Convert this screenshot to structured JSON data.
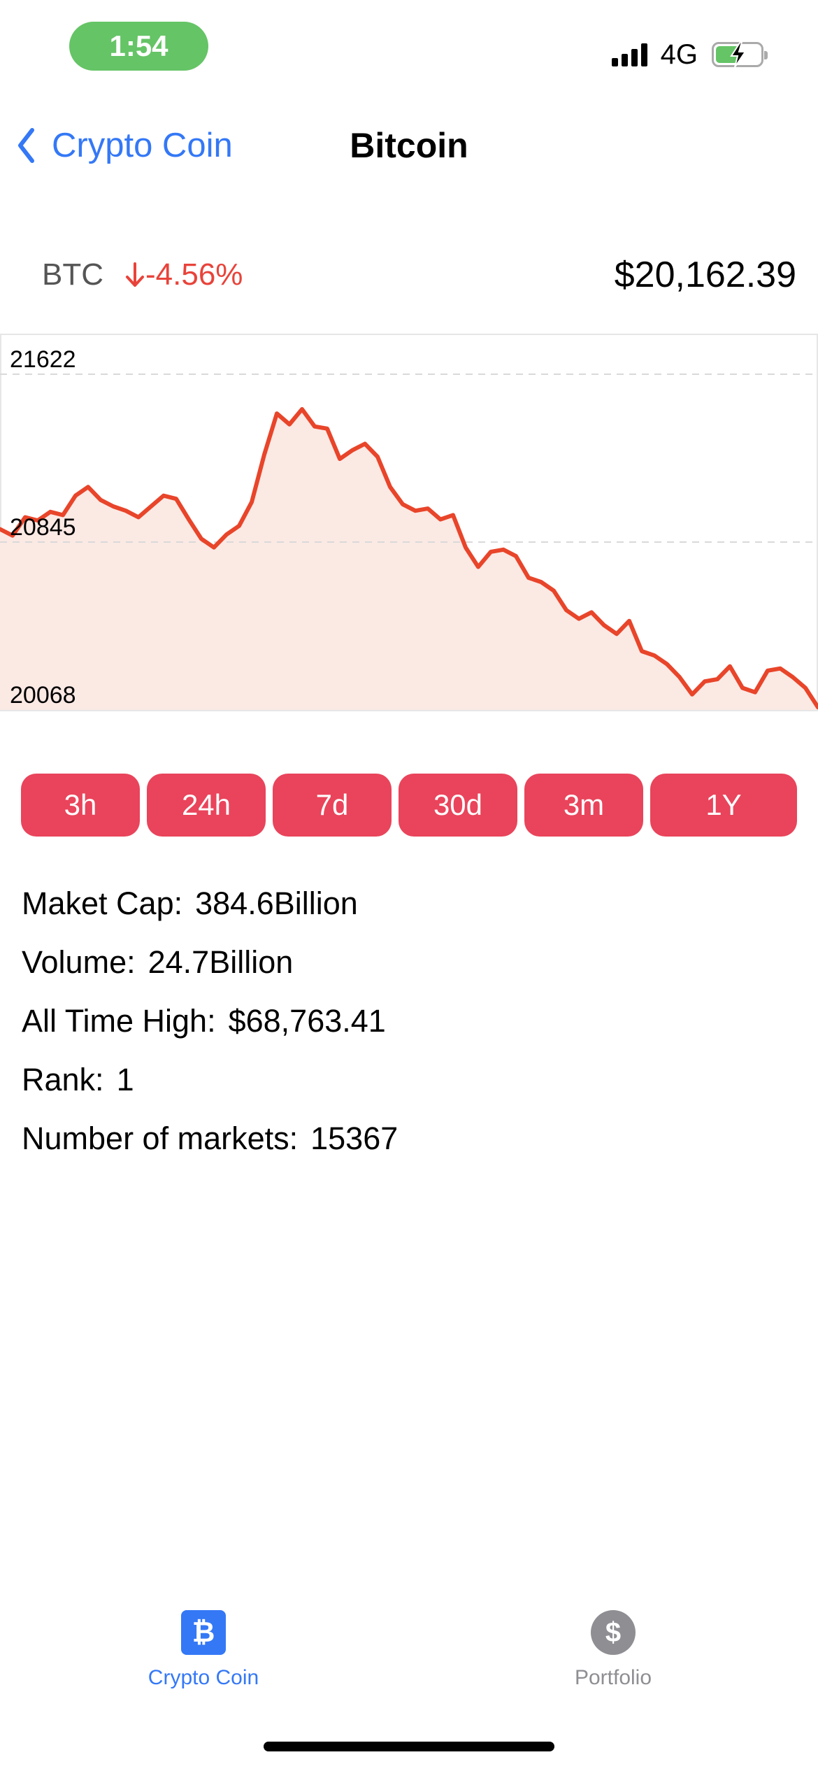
{
  "status_bar": {
    "time": "1:54",
    "network": "4G",
    "battery_level": 0.55,
    "colors": {
      "time_pill": "#65c466",
      "battery": "#65c466"
    }
  },
  "nav": {
    "back_label": "Crypto Coin",
    "title": "Bitcoin",
    "back_icon": "chevron-left-icon",
    "accent": "#3478f6"
  },
  "coin": {
    "symbol": "BTC",
    "change": "-4.56%",
    "change_icon": "arrow-down-icon",
    "price": "$20,162.39",
    "down_color": "#e8433a"
  },
  "chart_data": {
    "type": "area",
    "y_ticks": [
      "21622",
      "20845",
      "20068"
    ],
    "ylim": [
      20068,
      21622
    ],
    "grid": "dashed horizontal lines at upper two ticks",
    "line_color": "#e8452a",
    "fill_color": "#fbe9e4",
    "values": [
      20905,
      20875,
      20960,
      20945,
      20985,
      20970,
      21060,
      21100,
      21040,
      21010,
      20990,
      20960,
      21010,
      21060,
      21045,
      20950,
      20860,
      20820,
      20880,
      20920,
      21030,
      21250,
      21440,
      21390,
      21460,
      21380,
      21370,
      21230,
      21270,
      21300,
      21240,
      21100,
      21020,
      20990,
      21000,
      20950,
      20970,
      20820,
      20730,
      20800,
      20810,
      20780,
      20680,
      20660,
      20620,
      20530,
      20490,
      20520,
      20460,
      20420,
      20480,
      20340,
      20320,
      20280,
      20220,
      20140,
      20200,
      20210,
      20270,
      20170,
      20150,
      20250,
      20260,
      20220,
      20170,
      20080
    ]
  },
  "range_buttons": [
    "3h",
    "24h",
    "7d",
    "30d",
    "3m",
    "1Y"
  ],
  "stats": [
    {
      "label": "Maket Cap:",
      "value": "384.6Billion"
    },
    {
      "label": "Volume:",
      "value": "24.7Billion"
    },
    {
      "label": "All Time High:",
      "value": "$68,763.41"
    },
    {
      "label": "Rank:",
      "value": "1"
    },
    {
      "label": "Number of markets:",
      "value": "15367"
    }
  ],
  "tab_bar": {
    "tabs": [
      {
        "label": "Crypto Coin",
        "icon": "bitcoin-icon",
        "glyph": "₿",
        "active": true,
        "color": "#3478f6"
      },
      {
        "label": "Portfolio",
        "icon": "dollar-icon",
        "glyph": "$",
        "active": false,
        "color": "#8e8e93"
      }
    ]
  }
}
